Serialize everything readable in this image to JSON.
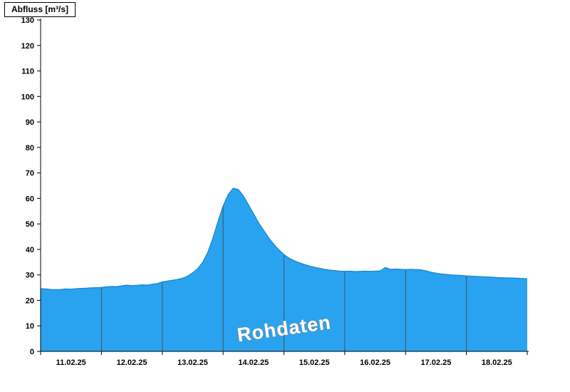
{
  "header": {
    "title": "Abfluss [m³/s]"
  },
  "watermark": {
    "label": "Rohdaten"
  },
  "colors": {
    "area_fill": "#29a3f0",
    "area_edge": "#1583cf",
    "day_gridline": "#44555f",
    "axis": "#000000",
    "background": "#ffffff",
    "watermark_fill": "#ffffff",
    "watermark_outline": "#8f8f8f"
  },
  "chart_data": {
    "type": "area",
    "title": "Abfluss [m³/s]",
    "ylabel": "Abfluss [m³/s]",
    "xlabel": "",
    "legend": "none",
    "grid": "vertical day-boundary lines clipped inside filled area, no horizontal gridlines",
    "ylim": [
      0,
      130
    ],
    "y_ticks": [
      0,
      10,
      20,
      30,
      40,
      50,
      60,
      70,
      80,
      90,
      100,
      110,
      120,
      130
    ],
    "x_range_hours": [
      0,
      192
    ],
    "hours_per_day": 24,
    "x_tick_labels": [
      "11.02.25",
      "12.02.25",
      "13.02.25",
      "14.02.25",
      "15.02.25",
      "16.02.25",
      "17.02.25",
      "18.02.25"
    ],
    "series": [
      {
        "name": "Abfluss Rohdaten",
        "unit": "m³/s",
        "points": [
          [
            0,
            24.6
          ],
          [
            2,
            24.5
          ],
          [
            4,
            24.3
          ],
          [
            6,
            24.2
          ],
          [
            8,
            24.3
          ],
          [
            10,
            24.5
          ],
          [
            12,
            24.4
          ],
          [
            14,
            24.6
          ],
          [
            16,
            24.7
          ],
          [
            18,
            24.8
          ],
          [
            20,
            24.9
          ],
          [
            22,
            25.0
          ],
          [
            24,
            25.1
          ],
          [
            26,
            25.3
          ],
          [
            28,
            25.5
          ],
          [
            30,
            25.4
          ],
          [
            32,
            25.7
          ],
          [
            34,
            26.0
          ],
          [
            36,
            25.8
          ],
          [
            38,
            25.9
          ],
          [
            40,
            26.1
          ],
          [
            42,
            26.0
          ],
          [
            44,
            26.3
          ],
          [
            46,
            26.6
          ],
          [
            48,
            27.3
          ],
          [
            50,
            27.6
          ],
          [
            52,
            27.9
          ],
          [
            54,
            28.2
          ],
          [
            56,
            28.7
          ],
          [
            58,
            29.5
          ],
          [
            60,
            30.8
          ],
          [
            62,
            32.5
          ],
          [
            64,
            35.0
          ],
          [
            66,
            39.0
          ],
          [
            68,
            44.5
          ],
          [
            70,
            51.0
          ],
          [
            72,
            57.0
          ],
          [
            74,
            61.5
          ],
          [
            76,
            64.0
          ],
          [
            78,
            63.5
          ],
          [
            80,
            61.0
          ],
          [
            82,
            57.5
          ],
          [
            84,
            54.0
          ],
          [
            86,
            50.5
          ],
          [
            88,
            47.5
          ],
          [
            90,
            44.5
          ],
          [
            92,
            42.0
          ],
          [
            94,
            39.8
          ],
          [
            96,
            38.0
          ],
          [
            98,
            36.6
          ],
          [
            100,
            35.6
          ],
          [
            102,
            34.8
          ],
          [
            104,
            34.1
          ],
          [
            106,
            33.5
          ],
          [
            108,
            33.0
          ],
          [
            110,
            32.6
          ],
          [
            112,
            32.2
          ],
          [
            114,
            31.9
          ],
          [
            116,
            31.7
          ],
          [
            118,
            31.5
          ],
          [
            120,
            31.4
          ],
          [
            122,
            31.5
          ],
          [
            124,
            31.3
          ],
          [
            126,
            31.4
          ],
          [
            128,
            31.5
          ],
          [
            130,
            31.4
          ],
          [
            132,
            31.5
          ],
          [
            134,
            31.6
          ],
          [
            136,
            32.9
          ],
          [
            138,
            32.2
          ],
          [
            140,
            32.3
          ],
          [
            142,
            32.2
          ],
          [
            144,
            32.1
          ],
          [
            146,
            32.2
          ],
          [
            148,
            32.1
          ],
          [
            150,
            32.0
          ],
          [
            152,
            31.6
          ],
          [
            154,
            31.1
          ],
          [
            156,
            30.7
          ],
          [
            158,
            30.4
          ],
          [
            160,
            30.2
          ],
          [
            162,
            30.0
          ],
          [
            164,
            29.9
          ],
          [
            166,
            29.8
          ],
          [
            168,
            29.6
          ],
          [
            170,
            29.5
          ],
          [
            172,
            29.4
          ],
          [
            174,
            29.3
          ],
          [
            176,
            29.2
          ],
          [
            178,
            29.1
          ],
          [
            180,
            29.0
          ],
          [
            182,
            28.9
          ],
          [
            184,
            28.8
          ],
          [
            186,
            28.8
          ],
          [
            188,
            28.7
          ],
          [
            190,
            28.6
          ],
          [
            192,
            28.5
          ]
        ]
      }
    ]
  }
}
